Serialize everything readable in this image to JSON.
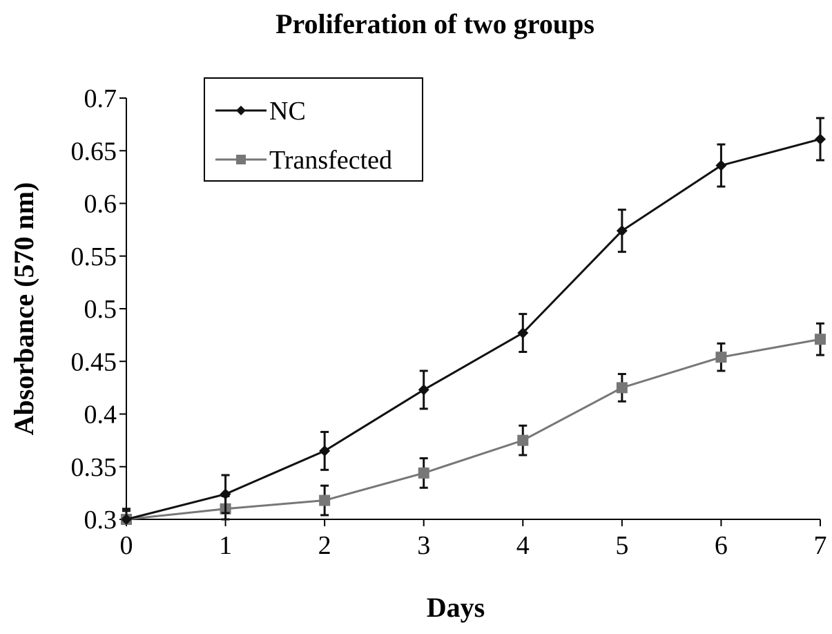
{
  "chart_data": {
    "type": "line",
    "title": "Proliferation of two groups",
    "xlabel": "Days",
    "ylabel": "Absorbance (570 nm)",
    "x": [
      0,
      1,
      2,
      3,
      4,
      5,
      6,
      7
    ],
    "xlim": [
      0,
      7
    ],
    "ylim": [
      0.3,
      0.7
    ],
    "xticks": [
      "0",
      "1",
      "2",
      "3",
      "4",
      "5",
      "6",
      "7"
    ],
    "yticks": [
      "0.3",
      "0.35",
      "0.4",
      "0.45",
      "0.5",
      "0.55",
      "0.6",
      "0.65",
      "0.7"
    ],
    "grid": false,
    "legend_position": "top-left",
    "series": [
      {
        "name": "NC",
        "color": "#111111",
        "marker": "diamond",
        "values": [
          0.3,
          0.324,
          0.365,
          0.423,
          0.477,
          0.574,
          0.636,
          0.661
        ],
        "errors": [
          0.01,
          0.018,
          0.018,
          0.018,
          0.018,
          0.02,
          0.02,
          0.02
        ]
      },
      {
        "name": "Transfected",
        "color": "#777777",
        "marker": "square",
        "values": [
          0.3,
          0.31,
          0.318,
          0.344,
          0.375,
          0.425,
          0.454,
          0.471
        ],
        "errors": [
          0.008,
          0.012,
          0.014,
          0.014,
          0.014,
          0.013,
          0.013,
          0.015
        ]
      }
    ]
  }
}
